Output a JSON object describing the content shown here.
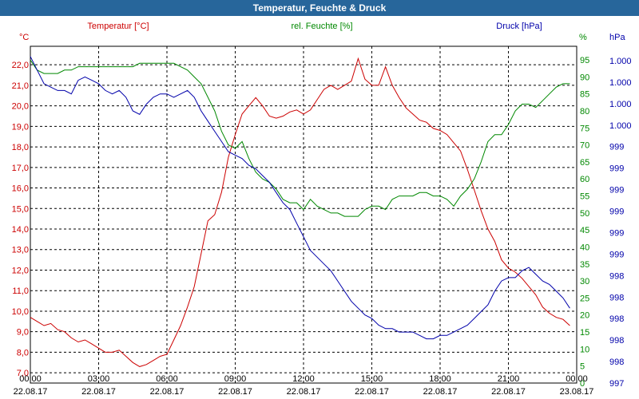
{
  "title": "Temperatur, Feuchte & Druck",
  "colors": {
    "temperature": "#cc0000",
    "humidity": "#008800",
    "pressure": "#0000aa",
    "title_bg": "#27669b",
    "grid": "#000000"
  },
  "chart_data": {
    "type": "line",
    "title": "Temperatur, Feuchte & Druck",
    "x_ticks": [
      {
        "hour": 0,
        "time": "00:00",
        "date": "22.08.17"
      },
      {
        "hour": 3,
        "time": "03:00",
        "date": "22.08.17"
      },
      {
        "hour": 6,
        "time": "06:00",
        "date": "22.08.17"
      },
      {
        "hour": 9,
        "time": "09:00",
        "date": "22.08.17"
      },
      {
        "hour": 12,
        "time": "12:00",
        "date": "22.08.17"
      },
      {
        "hour": 15,
        "time": "15:00",
        "date": "22.08.17"
      },
      {
        "hour": 18,
        "time": "18:00",
        "date": "22.08.17"
      },
      {
        "hour": 21,
        "time": "21:00",
        "date": "22.08.17"
      },
      {
        "hour": 24,
        "time": "00:00",
        "date": "23.08.17"
      }
    ],
    "xlim": [
      0,
      24
    ],
    "axes": {
      "left": {
        "unit": "°C",
        "ylim": [
          6.5,
          22.9
        ],
        "ticks": [
          "7,0",
          "8,0",
          "9,0",
          "10,0",
          "11,0",
          "12,0",
          "13,0",
          "14,0",
          "15,0",
          "16,0",
          "17,0",
          "18,0",
          "19,0",
          "20,0",
          "21,0",
          "22,0"
        ]
      },
      "right1": {
        "unit": "%",
        "ylim": [
          0,
          99
        ],
        "ticks": [
          "0",
          "5",
          "10",
          "15",
          "20",
          "25",
          "30",
          "35",
          "40",
          "45",
          "50",
          "55",
          "60",
          "65",
          "70",
          "75",
          "80",
          "85",
          "90",
          "95"
        ]
      },
      "right2": {
        "unit": "hPa",
        "ticks": [
          "997",
          "998",
          "998",
          "998",
          "998",
          "998",
          "999",
          "999",
          "999",
          "999",
          "999",
          "999",
          "1.000",
          "1.000",
          "1.000",
          "1.000"
        ]
      }
    },
    "series": [
      {
        "name": "Temperatur [°C]",
        "axis": "left",
        "color": "#cc0000",
        "x": [
          0,
          0.3,
          0.6,
          0.9,
          1.2,
          1.5,
          1.8,
          2.1,
          2.4,
          2.7,
          3.0,
          3.3,
          3.6,
          3.9,
          4.2,
          4.5,
          4.8,
          5.1,
          5.4,
          5.7,
          6.0,
          6.3,
          6.6,
          6.9,
          7.2,
          7.5,
          7.8,
          8.1,
          8.4,
          8.7,
          9.0,
          9.3,
          9.6,
          9.9,
          10.2,
          10.5,
          10.8,
          11.1,
          11.4,
          11.7,
          12.0,
          12.3,
          12.6,
          12.9,
          13.2,
          13.5,
          13.8,
          14.1,
          14.4,
          14.7,
          15.0,
          15.3,
          15.6,
          15.9,
          16.2,
          16.5,
          16.8,
          17.1,
          17.4,
          17.7,
          18.0,
          18.3,
          18.6,
          18.9,
          19.2,
          19.5,
          19.8,
          20.1,
          20.4,
          20.7,
          21.0,
          21.3,
          21.6,
          21.9,
          22.2,
          22.5,
          22.8,
          23.1,
          23.4,
          23.7
        ],
        "values": [
          9.7,
          9.5,
          9.3,
          9.4,
          9.1,
          9.0,
          8.7,
          8.5,
          8.6,
          8.4,
          8.2,
          8.0,
          8.0,
          8.1,
          7.8,
          7.5,
          7.3,
          7.4,
          7.6,
          7.8,
          7.9,
          8.6,
          9.3,
          10.2,
          11.2,
          12.8,
          14.4,
          14.7,
          15.8,
          17.5,
          18.6,
          19.6,
          20.0,
          20.4,
          20.0,
          19.5,
          19.4,
          19.5,
          19.7,
          19.8,
          19.6,
          19.8,
          20.3,
          20.8,
          21.0,
          20.8,
          21.0,
          21.2,
          22.3,
          21.3,
          21.0,
          21.0,
          21.9,
          21.0,
          20.4,
          19.9,
          19.6,
          19.3,
          19.2,
          18.9,
          18.8,
          18.6,
          18.2,
          17.8,
          16.9,
          15.9,
          14.9,
          14.0,
          13.4,
          12.5,
          12.1,
          11.9,
          11.6,
          11.2,
          10.8,
          10.2,
          9.9,
          9.7,
          9.6,
          9.3
        ]
      },
      {
        "name": "rel. Feuchte [%]",
        "axis": "right1",
        "color": "#008800",
        "x": [
          0,
          0.3,
          0.6,
          0.9,
          1.2,
          1.5,
          1.8,
          2.1,
          2.4,
          2.7,
          3.0,
          3.3,
          3.6,
          3.9,
          4.2,
          4.5,
          4.8,
          5.1,
          5.4,
          5.7,
          6.0,
          6.3,
          6.6,
          6.9,
          7.2,
          7.5,
          7.8,
          8.1,
          8.4,
          8.7,
          9.0,
          9.3,
          9.6,
          9.9,
          10.2,
          10.5,
          10.8,
          11.1,
          11.4,
          11.7,
          12.0,
          12.3,
          12.6,
          12.9,
          13.2,
          13.5,
          13.8,
          14.1,
          14.4,
          14.7,
          15.0,
          15.3,
          15.6,
          15.9,
          16.2,
          16.5,
          16.8,
          17.1,
          17.4,
          17.7,
          18.0,
          18.3,
          18.6,
          18.9,
          19.2,
          19.5,
          19.8,
          20.1,
          20.4,
          20.7,
          21.0,
          21.3,
          21.6,
          21.9,
          22.2,
          22.5,
          22.8,
          23.1,
          23.4,
          23.7
        ],
        "values": [
          95,
          92,
          91,
          91,
          91,
          92,
          92,
          93,
          93,
          93,
          93,
          93,
          93,
          93,
          93,
          93,
          94,
          94,
          94,
          94,
          94,
          94,
          93,
          92,
          90,
          88,
          84,
          80,
          74,
          70,
          69,
          71,
          66,
          62,
          60,
          59,
          57,
          54,
          53,
          53,
          51,
          54,
          52,
          51,
          50,
          50,
          49,
          49,
          49,
          51,
          52,
          52,
          51,
          54,
          55,
          55,
          55,
          56,
          56,
          55,
          55,
          54,
          52,
          55,
          57,
          60,
          65,
          71,
          73,
          73,
          76,
          80,
          82,
          82,
          81,
          83,
          85,
          87,
          88,
          88
        ]
      },
      {
        "name": "Druck [hPa]",
        "axis": "right1",
        "color": "#0000aa",
        "x": [
          0,
          0.3,
          0.6,
          0.9,
          1.2,
          1.5,
          1.8,
          2.1,
          2.4,
          2.7,
          3.0,
          3.3,
          3.6,
          3.9,
          4.2,
          4.5,
          4.8,
          5.1,
          5.4,
          5.7,
          6.0,
          6.3,
          6.6,
          6.9,
          7.2,
          7.5,
          7.8,
          8.1,
          8.4,
          8.7,
          9.0,
          9.3,
          9.6,
          9.9,
          10.2,
          10.5,
          10.8,
          11.1,
          11.4,
          11.7,
          12.0,
          12.3,
          12.6,
          12.9,
          13.2,
          13.5,
          13.8,
          14.1,
          14.4,
          14.7,
          15.0,
          15.3,
          15.6,
          15.9,
          16.2,
          16.5,
          16.8,
          17.1,
          17.4,
          17.7,
          18.0,
          18.3,
          18.6,
          18.9,
          19.2,
          19.5,
          19.8,
          20.1,
          20.4,
          20.7,
          21.0,
          21.3,
          21.6,
          21.9,
          22.2,
          22.5,
          22.8,
          23.1,
          23.4,
          23.7
        ],
        "values": [
          96,
          92,
          88,
          87,
          86,
          86,
          85,
          89,
          90,
          89,
          88,
          86,
          85,
          86,
          84,
          80,
          79,
          82,
          84,
          85,
          85,
          84,
          85,
          86,
          84,
          80,
          77,
          74,
          71,
          68,
          67,
          66,
          64,
          63,
          61,
          59,
          56,
          53,
          51,
          47,
          43,
          39,
          37,
          35,
          33,
          30,
          27,
          24,
          22,
          20,
          19,
          17,
          16,
          16,
          15,
          15,
          15,
          14,
          13,
          13,
          14,
          14,
          15,
          16,
          17,
          19,
          21,
          23,
          27,
          30,
          31,
          31,
          33,
          34,
          32,
          30,
          29,
          27,
          25,
          22
        ]
      }
    ],
    "legend": [
      "Temperatur [°C]",
      "rel. Feuchte [%]",
      "Druck [hPa]"
    ]
  }
}
